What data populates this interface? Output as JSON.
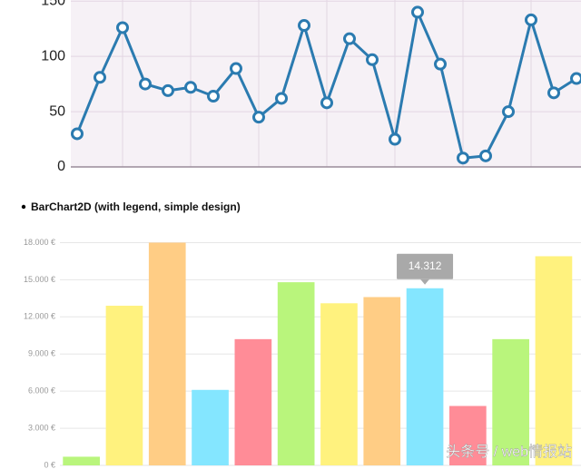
{
  "section_heading": "BarChart2D (with legend, simple design)",
  "watermark": "头条号 / web情报站",
  "chart_data": [
    {
      "type": "line",
      "categories": [
        null,
        null,
        null,
        null,
        null,
        null,
        null,
        null,
        null,
        null,
        null,
        null,
        null,
        null,
        null,
        null,
        null,
        null,
        null,
        null,
        null,
        null,
        null
      ],
      "series": [
        {
          "color": "#2b7bb0",
          "values": [
            30,
            81,
            126,
            75,
            69,
            72,
            64,
            89,
            45,
            62,
            128,
            58,
            116,
            97,
            25,
            140,
            93,
            8,
            10,
            50,
            133,
            67,
            80
          ]
        }
      ],
      "ylim": [
        0,
        151
      ],
      "yticks": [
        0,
        50,
        100,
        150
      ],
      "grid": true
    },
    {
      "type": "bar",
      "categories": [
        null,
        null,
        null,
        null,
        null,
        null,
        null,
        null,
        null,
        null,
        null,
        null
      ],
      "values": [
        700,
        12900,
        18000,
        6100,
        10200,
        14800,
        13100,
        13600,
        14312,
        4800,
        10200,
        16900
      ],
      "value_labels": [
        null,
        null,
        null,
        null,
        null,
        null,
        null,
        null,
        "14.312",
        null,
        null,
        null
      ],
      "colors": [
        "#b9f57c",
        "#fff27e",
        "#ffcd85",
        "#84e6ff",
        "#ff8c97",
        "#b9f57c",
        "#fff27e",
        "#ffcd85",
        "#84e6ff",
        "#ff8c97",
        "#b9f57c",
        "#fff27e"
      ],
      "ylim": [
        0,
        18400
      ],
      "yticks": [
        {
          "value": 0,
          "label": "0 €"
        },
        {
          "value": 3000,
          "label": "3.000 €"
        },
        {
          "value": 6000,
          "label": "6.000 €"
        },
        {
          "value": 9000,
          "label": "9.000 €"
        },
        {
          "value": 12000,
          "label": "12.000 €"
        },
        {
          "value": 15000,
          "label": "15.000 €"
        },
        {
          "value": 18000,
          "label": "18.000 €"
        }
      ],
      "grid": true
    }
  ]
}
